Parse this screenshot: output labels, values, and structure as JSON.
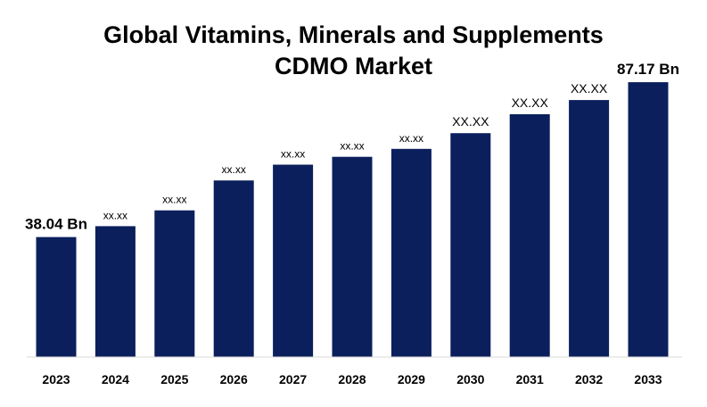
{
  "chart_data": {
    "type": "bar",
    "title_lines": [
      "Global Vitamins, Minerals and Supplements",
      "CDMO Market"
    ],
    "categories": [
      "2023",
      "2024",
      "2025",
      "2026",
      "2027",
      "2028",
      "2029",
      "2030",
      "2031",
      "2032",
      "2033"
    ],
    "values": [
      38.04,
      41.5,
      46.5,
      56.0,
      61.0,
      63.5,
      66.0,
      71.0,
      77.0,
      81.5,
      87.17
    ],
    "data_labels": [
      "38.04 Bn",
      "xx.xx",
      "xx.xx",
      "xx.xx",
      "xx.xx",
      "xx.xx",
      "xx.xx",
      "XX.XX",
      "XX.XX",
      "XX.XX",
      "87.17 Bn"
    ],
    "ylim": [
      0,
      92
    ],
    "grid": false,
    "legend": "none",
    "bar_color": "#0b1f5c"
  }
}
